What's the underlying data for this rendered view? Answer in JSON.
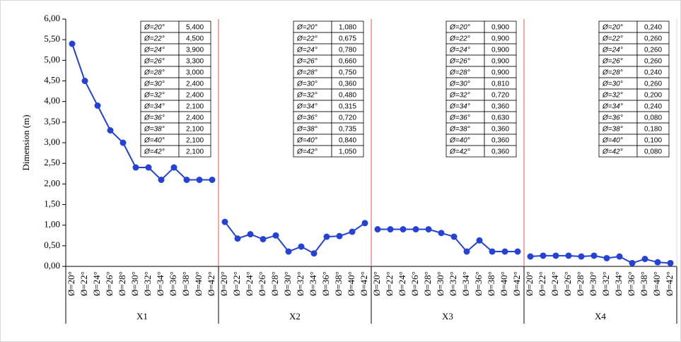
{
  "chart_data": {
    "type": "line",
    "ylabel": "Dimension (m)",
    "categories": [
      "Ø=20°",
      "Ø=22°",
      "Ø=24°",
      "Ø=26°",
      "Ø=28°",
      "Ø=30°",
      "Ø=32°",
      "Ø=34°",
      "Ø=36°",
      "Ø=38°",
      "Ø=40°",
      "Ø=42°"
    ],
    "ylim": [
      0,
      6
    ],
    "yticks": [
      {
        "value": 0,
        "label": "0,00"
      },
      {
        "value": 0.5,
        "label": "0,50"
      },
      {
        "value": 1,
        "label": "1,00"
      },
      {
        "value": 1.5,
        "label": "1,50"
      },
      {
        "value": 2,
        "label": "2,00"
      },
      {
        "value": 2.5,
        "label": "2,50"
      },
      {
        "value": 3,
        "label": "3,00"
      },
      {
        "value": 3.5,
        "label": "3,50"
      },
      {
        "value": 4,
        "label": "4,00"
      },
      {
        "value": 4.5,
        "label": "4,50"
      },
      {
        "value": 5,
        "label": "5,00"
      },
      {
        "value": 5.5,
        "label": "5,50"
      },
      {
        "value": 6,
        "label": "6,00"
      }
    ],
    "color": "#2443d6",
    "series": [
      {
        "name": "X1",
        "values": [
          5.4,
          4.5,
          3.9,
          3.3,
          3.0,
          2.4,
          2.4,
          2.1,
          2.4,
          2.1,
          2.1,
          2.1
        ],
        "value_labels": [
          "5,400",
          "4,500",
          "3,900",
          "3,300",
          "3,000",
          "2,400",
          "2,400",
          "2,100",
          "2,400",
          "2,100",
          "2,100",
          "2,100"
        ]
      },
      {
        "name": "X2",
        "values": [
          1.08,
          0.675,
          0.78,
          0.66,
          0.75,
          0.36,
          0.48,
          0.315,
          0.72,
          0.735,
          0.84,
          1.05
        ],
        "value_labels": [
          "1,080",
          "0,675",
          "0,780",
          "0,660",
          "0,750",
          "0,360",
          "0,480",
          "0,315",
          "0,720",
          "0,735",
          "0,840",
          "1,050"
        ]
      },
      {
        "name": "X3",
        "values": [
          0.9,
          0.9,
          0.9,
          0.9,
          0.9,
          0.81,
          0.72,
          0.36,
          0.63,
          0.36,
          0.36,
          0.36
        ],
        "value_labels": [
          "0,900",
          "0,900",
          "0,900",
          "0,900",
          "0,900",
          "0,810",
          "0,720",
          "0,360",
          "0,630",
          "0,360",
          "0,360",
          "0,360"
        ]
      },
      {
        "name": "X4",
        "values": [
          0.24,
          0.26,
          0.26,
          0.26,
          0.24,
          0.26,
          0.2,
          0.24,
          0.08,
          0.18,
          0.1,
          0.08
        ],
        "value_labels": [
          "0,240",
          "0,260",
          "0,260",
          "0,260",
          "0,240",
          "0,260",
          "0,200",
          "0,240",
          "0,080",
          "0,180",
          "0,100",
          "0,080"
        ]
      }
    ]
  }
}
